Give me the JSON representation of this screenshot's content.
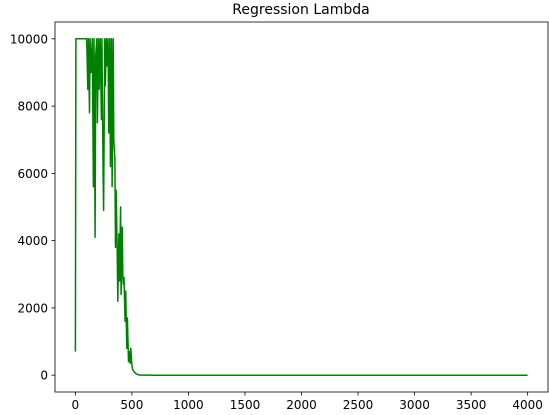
{
  "chart_data": {
    "type": "line",
    "title": "Regression Lambda",
    "xlabel": "",
    "ylabel": "",
    "xlim": [
      -180,
      4180
    ],
    "ylim": [
      -500,
      10500
    ],
    "xticks": [
      0,
      500,
      1000,
      1500,
      2000,
      2500,
      3000,
      3500,
      4000
    ],
    "xtick_labels": [
      "0",
      "500",
      "1000",
      "1500",
      "2000",
      "2500",
      "3000",
      "3500",
      "4000"
    ],
    "yticks": [
      0,
      2000,
      4000,
      6000,
      8000,
      10000
    ],
    "ytick_labels": [
      "0",
      "2000",
      "4000",
      "6000",
      "8000",
      "10000"
    ],
    "grid": false,
    "legend": "none",
    "series": [
      {
        "color": "#008000",
        "x": [
          0,
          5,
          100,
          110,
          115,
          125,
          130,
          140,
          150,
          160,
          165,
          175,
          180,
          190,
          195,
          205,
          210,
          220,
          230,
          235,
          245,
          250,
          260,
          265,
          275,
          280,
          290,
          295,
          305,
          310,
          320,
          325,
          335,
          340,
          350,
          355,
          360,
          370,
          375,
          385,
          390,
          400,
          405,
          415,
          420,
          425,
          430,
          440,
          445,
          455,
          460,
          470,
          475,
          480,
          485,
          490,
          500,
          505,
          510,
          520,
          530,
          540,
          550,
          560,
          570,
          580,
          600,
          650,
          700,
          1000,
          2000,
          3000,
          4000
        ],
        "y": [
          700,
          10000,
          10000,
          8500,
          10000,
          7800,
          10000,
          9000,
          10000,
          5600,
          10000,
          4100,
          9500,
          10000,
          7500,
          10000,
          8500,
          10000,
          7600,
          10000,
          6000,
          4900,
          10000,
          8600,
          10000,
          9200,
          10000,
          7200,
          10000,
          6200,
          10000,
          5600,
          10000,
          7000,
          6400,
          3800,
          5500,
          3700,
          2200,
          4200,
          2800,
          5000,
          2400,
          4400,
          3000,
          2700,
          2900,
          1600,
          2500,
          800,
          1700,
          400,
          600,
          700,
          350,
          800,
          300,
          200,
          150,
          100,
          60,
          40,
          20,
          10,
          5,
          3,
          2,
          1,
          0,
          0,
          0,
          0,
          0
        ]
      }
    ]
  }
}
